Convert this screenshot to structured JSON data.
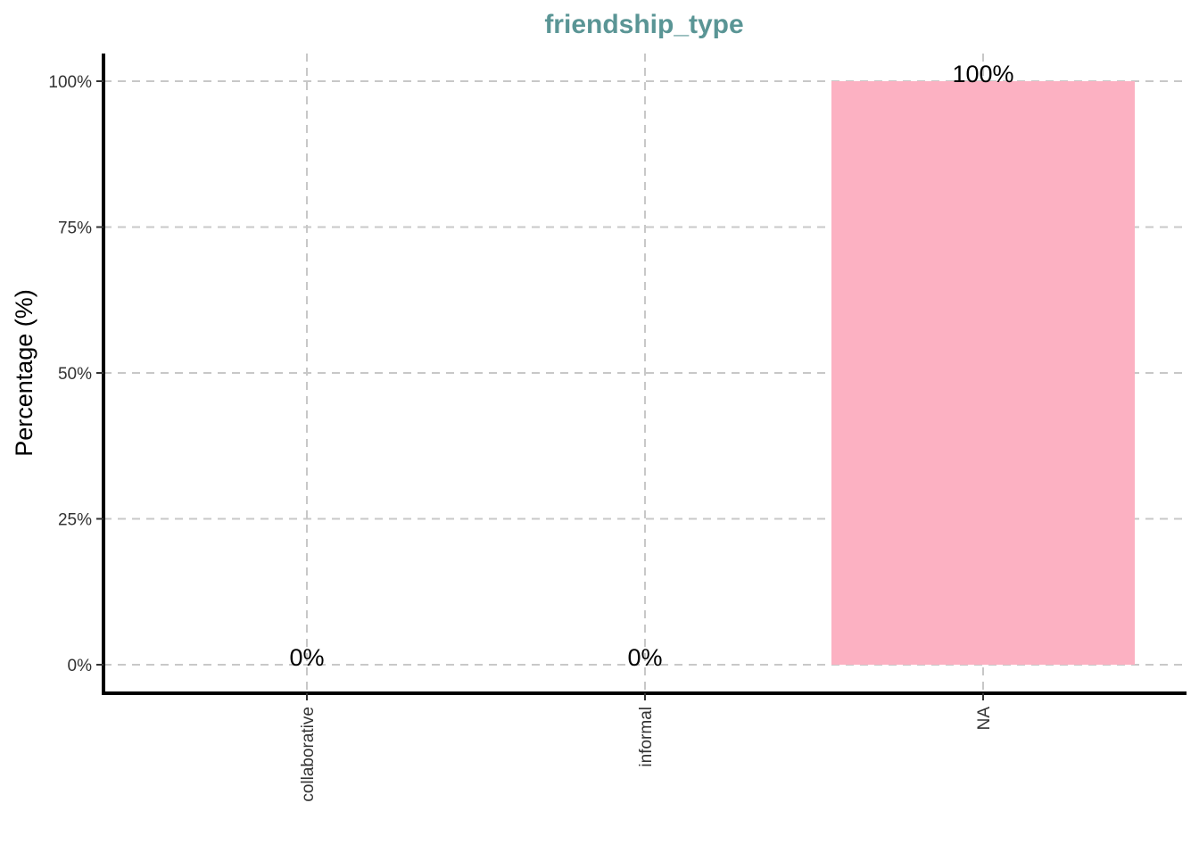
{
  "chart_data": {
    "type": "bar",
    "title": "friendship_type",
    "xlabel": "",
    "ylabel": "Percentage (%)",
    "categories": [
      "collaborative",
      "informal",
      "NA"
    ],
    "values": [
      0,
      0,
      100
    ],
    "data_labels": [
      "0%",
      "0%",
      "100%"
    ],
    "ylim": [
      0,
      105
    ],
    "yticks": [
      0,
      25,
      50,
      75,
      100
    ],
    "ytick_labels": [
      "0%",
      "25%",
      "50%",
      "75%",
      "100%"
    ],
    "grid": true,
    "grid_style": "dashed",
    "legend": "none",
    "colors": {
      "bar": "#FCB1C2",
      "title": "#5A9595",
      "grid": "#C8C8C8",
      "axis": "#000000"
    }
  }
}
